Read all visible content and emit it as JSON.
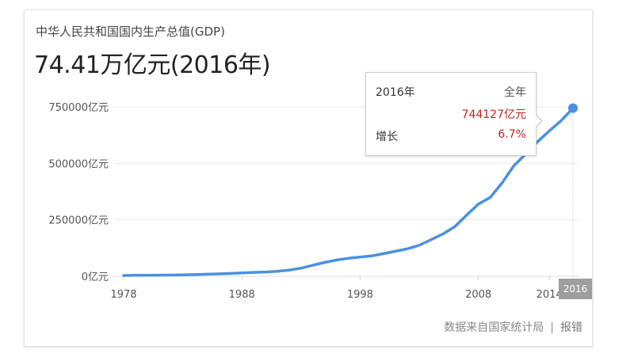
{
  "header": {
    "title": "中华人民共和国国内生产总值(GDP)",
    "headline_value": "74.41万亿元(2016年)"
  },
  "tooltip": {
    "year": "2016年",
    "period": "全年",
    "value": "744127亿元",
    "growth_label": "增长",
    "growth_value": "6.7%"
  },
  "highlight_label": "2016",
  "footer": {
    "source": "数据来自国家统计局",
    "separator": "|",
    "report_link": "报错"
  },
  "colors": {
    "line": "#4a90e2",
    "highlight_value": "#c5221f",
    "badge": "#9e9e9e"
  },
  "chart_data": {
    "type": "line",
    "title": "中华人民共和国国内生产总值(GDP)",
    "xlabel": "",
    "ylabel": "",
    "xlim": [
      1978,
      2016
    ],
    "ylim": [
      0,
      750000
    ],
    "x_ticks": [
      1978,
      1988,
      1998,
      2008,
      2014
    ],
    "x_tick_labels": [
      "1978",
      "1988",
      "1998",
      "2008",
      "2014"
    ],
    "y_ticks": [
      0,
      250000,
      500000,
      750000
    ],
    "y_tick_labels": [
      "0亿元",
      "250000亿元",
      "500000亿元",
      "750000亿元"
    ],
    "grid": true,
    "series": [
      {
        "name": "",
        "x": [
          1978,
          1979,
          1980,
          1981,
          1982,
          1983,
          1984,
          1985,
          1986,
          1987,
          1988,
          1989,
          1990,
          1991,
          1992,
          1993,
          1994,
          1995,
          1996,
          1997,
          1998,
          1999,
          2000,
          2001,
          2002,
          2003,
          2004,
          2005,
          2006,
          2007,
          2008,
          2009,
          2010,
          2011,
          2012,
          2013,
          2014,
          2015,
          2016
        ],
        "y": [
          3679,
          4101,
          4588,
          4936,
          5373,
          6021,
          7279,
          9099,
          10376,
          12175,
          15180,
          17180,
          18873,
          22006,
          27195,
          35673,
          48638,
          61340,
          71814,
          79715,
          85196,
          90564,
          100280,
          110863,
          121717,
          137422,
          161840,
          187319,
          219439,
          270232,
          319516,
          349081,
          413030,
          489301,
          540367,
          595244,
          643974,
          689052,
          744127
        ]
      }
    ],
    "highlight": {
      "x": 2016,
      "y": 744127
    }
  }
}
